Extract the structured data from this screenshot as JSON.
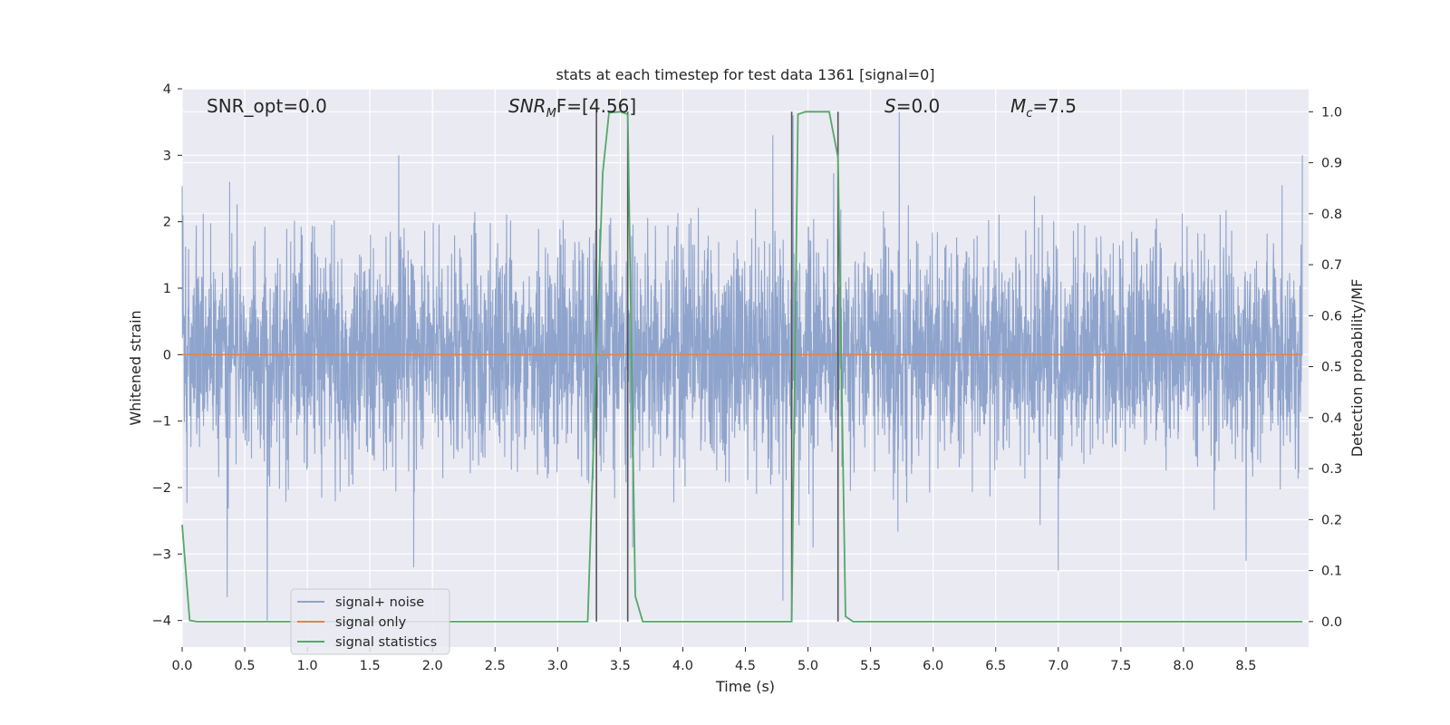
{
  "chart_data": {
    "type": "line",
    "title": "stats at each timestep for test data 1361 [signal=0]",
    "xlabel": "Time (s)",
    "ylabel_left": "Whitened strain",
    "ylabel_right": "Detection probability/MF",
    "xlim": [
      0.0,
      9.0
    ],
    "ylim_left": [
      -4.4,
      4.0
    ],
    "ylim_right": [
      -0.05,
      1.045
    ],
    "xticks": [
      "0.0",
      "0.5",
      "1.0",
      "1.5",
      "2.0",
      "2.5",
      "3.0",
      "3.5",
      "4.0",
      "4.5",
      "5.0",
      "5.5",
      "6.0",
      "6.5",
      "7.0",
      "7.5",
      "8.0",
      "8.5"
    ],
    "yticks_left": [
      "4",
      "3",
      "2",
      "1",
      "0",
      "−1",
      "−2",
      "−3",
      "−4"
    ],
    "yticks_right": [
      "1.0",
      "0.9",
      "0.8",
      "0.7",
      "0.6",
      "0.5",
      "0.4",
      "0.3",
      "0.2",
      "0.1",
      "0.0"
    ],
    "grid": true,
    "legend_position": "lower-left",
    "annotations": {
      "snr_opt": "SNR_opt=0.0",
      "snr_mf_base": "SNR",
      "snr_mf_sub": "M",
      "snr_mf_rest": "F=[4.56]",
      "s_italic": "S",
      "s_rest": "=0.0",
      "mc_base": "M",
      "mc_sub": "c",
      "mc_rest": "=7.5"
    },
    "series": [
      {
        "name": "signal+ noise",
        "color": "#8fa4cc",
        "kind": "noise",
        "typical_envelope": [
          -1.7,
          1.8
        ],
        "notable_peaks": [
          {
            "x": 1.73,
            "y": 3.0
          },
          {
            "x": 5.73,
            "y": 3.65
          },
          {
            "x": 4.72,
            "y": 3.3
          },
          {
            "x": 4.88,
            "y": 3.6
          },
          {
            "x": 8.95,
            "y": 3.0
          },
          {
            "x": 0.36,
            "y": -3.65
          },
          {
            "x": 0.68,
            "y": -4.0
          },
          {
            "x": 1.85,
            "y": -3.2
          },
          {
            "x": 4.8,
            "y": -3.7
          },
          {
            "x": 7.0,
            "y": -3.25
          },
          {
            "x": 8.5,
            "y": -3.1
          }
        ]
      },
      {
        "name": "signal only",
        "color": "#dd8452",
        "y": 0.0
      },
      {
        "name": "signal statistics",
        "color": "#55a868",
        "axis": "right",
        "points": [
          [
            0.0,
            0.19
          ],
          [
            0.06,
            0.002
          ],
          [
            0.12,
            0.0
          ],
          [
            3.24,
            0.0
          ],
          [
            3.3,
            0.45
          ],
          [
            3.36,
            0.88
          ],
          [
            3.41,
            0.998
          ],
          [
            3.5,
            1.0
          ],
          [
            3.56,
            0.995
          ],
          [
            3.62,
            0.05
          ],
          [
            3.68,
            0.0
          ],
          [
            4.87,
            0.0
          ],
          [
            4.92,
            0.995
          ],
          [
            4.98,
            1.0
          ],
          [
            5.17,
            1.0
          ],
          [
            5.24,
            0.91
          ],
          [
            5.3,
            0.01
          ],
          [
            5.36,
            0.0
          ],
          [
            8.95,
            0.0
          ]
        ]
      }
    ],
    "vertical_markers_x": [
      3.31,
      3.56,
      4.87,
      5.24
    ],
    "marker_color": "#555555"
  }
}
